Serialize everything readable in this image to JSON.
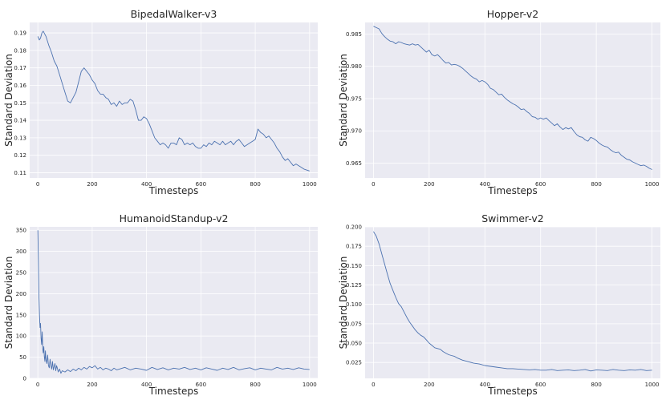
{
  "chart_data": [
    {
      "type": "line",
      "title": "BipedalWalker-v3",
      "xlabel": "Timesteps",
      "ylabel": "Standard Deviation",
      "xlim": [
        -30,
        1030
      ],
      "ylim": [
        0.107,
        0.196
      ],
      "xticks": [
        0,
        200,
        400,
        600,
        800,
        1000
      ],
      "yticks": [
        0.11,
        0.12,
        0.13,
        0.14,
        0.15,
        0.16,
        0.17,
        0.18,
        0.19
      ],
      "ytick_labels": [
        "0.11",
        "0.12",
        "0.13",
        "0.14",
        "0.15",
        "0.16",
        "0.17",
        "0.18",
        "0.19"
      ],
      "grid": true,
      "series": [
        {
          "x": [
            0,
            5,
            10,
            15,
            20,
            30,
            40,
            50,
            60,
            70,
            80,
            90,
            100,
            110,
            120,
            130,
            140,
            150,
            160,
            170,
            180,
            190,
            200,
            210,
            220,
            230,
            240,
            250,
            260,
            270,
            280,
            290,
            300,
            310,
            320,
            330,
            340,
            350,
            360,
            370,
            380,
            390,
            400,
            410,
            420,
            430,
            440,
            450,
            460,
            470,
            480,
            490,
            500,
            510,
            520,
            530,
            540,
            550,
            560,
            570,
            580,
            590,
            600,
            610,
            620,
            630,
            640,
            650,
            660,
            670,
            680,
            690,
            700,
            710,
            720,
            730,
            740,
            750,
            760,
            770,
            780,
            790,
            800,
            810,
            820,
            830,
            840,
            850,
            860,
            870,
            880,
            890,
            900,
            910,
            920,
            930,
            940,
            950,
            960,
            970,
            980,
            990,
            1000
          ],
          "y": [
            0.188,
            0.186,
            0.187,
            0.19,
            0.191,
            0.188,
            0.183,
            0.179,
            0.174,
            0.171,
            0.166,
            0.161,
            0.156,
            0.151,
            0.15,
            0.153,
            0.156,
            0.162,
            0.168,
            0.17,
            0.168,
            0.166,
            0.163,
            0.161,
            0.157,
            0.155,
            0.155,
            0.153,
            0.152,
            0.149,
            0.15,
            0.148,
            0.151,
            0.149,
            0.15,
            0.15,
            0.152,
            0.151,
            0.146,
            0.14,
            0.14,
            0.142,
            0.141,
            0.138,
            0.134,
            0.13,
            0.128,
            0.126,
            0.127,
            0.126,
            0.124,
            0.127,
            0.127,
            0.126,
            0.13,
            0.129,
            0.126,
            0.127,
            0.126,
            0.127,
            0.125,
            0.124,
            0.124,
            0.126,
            0.125,
            0.127,
            0.126,
            0.128,
            0.127,
            0.126,
            0.128,
            0.126,
            0.127,
            0.128,
            0.126,
            0.128,
            0.129,
            0.127,
            0.125,
            0.126,
            0.127,
            0.128,
            0.129,
            0.135,
            0.133,
            0.132,
            0.13,
            0.131,
            0.129,
            0.127,
            0.124,
            0.122,
            0.119,
            0.117,
            0.118,
            0.116,
            0.114,
            0.115,
            0.114,
            0.113,
            0.112,
            0.1115,
            0.111
          ]
        }
      ]
    },
    {
      "type": "line",
      "title": "Hopper-v2",
      "xlabel": "Timesteps",
      "ylabel": "Standard Deviation",
      "xlim": [
        -30,
        1030
      ],
      "ylim": [
        0.9627,
        0.9868
      ],
      "xticks": [
        0,
        200,
        400,
        600,
        800,
        1000
      ],
      "yticks": [
        0.965,
        0.97,
        0.975,
        0.98,
        0.985
      ],
      "ytick_labels": [
        "0.965",
        "0.970",
        "0.975",
        "0.980",
        "0.985"
      ],
      "grid": true,
      "series": [
        {
          "x": [
            0,
            10,
            20,
            30,
            40,
            50,
            60,
            70,
            80,
            90,
            100,
            110,
            120,
            130,
            140,
            150,
            160,
            170,
            180,
            190,
            200,
            210,
            220,
            230,
            240,
            250,
            260,
            270,
            280,
            290,
            300,
            310,
            320,
            330,
            340,
            350,
            360,
            370,
            380,
            390,
            400,
            410,
            420,
            430,
            440,
            450,
            460,
            470,
            480,
            490,
            500,
            510,
            520,
            530,
            540,
            550,
            560,
            570,
            580,
            590,
            600,
            610,
            620,
            630,
            640,
            650,
            660,
            670,
            680,
            690,
            700,
            710,
            720,
            730,
            740,
            750,
            760,
            770,
            780,
            790,
            800,
            810,
            820,
            830,
            840,
            850,
            860,
            870,
            880,
            890,
            900,
            910,
            920,
            930,
            940,
            950,
            960,
            970,
            980,
            990,
            1000
          ],
          "y": [
            0.9862,
            0.986,
            0.9858,
            0.9851,
            0.9846,
            0.9842,
            0.9839,
            0.9838,
            0.9835,
            0.9838,
            0.9837,
            0.9835,
            0.9834,
            0.9833,
            0.9835,
            0.9833,
            0.9834,
            0.983,
            0.9826,
            0.9822,
            0.9825,
            0.9818,
            0.9816,
            0.9818,
            0.9814,
            0.9809,
            0.9805,
            0.9806,
            0.9802,
            0.9803,
            0.9802,
            0.98,
            0.9797,
            0.9793,
            0.9789,
            0.9785,
            0.9782,
            0.978,
            0.9776,
            0.9778,
            0.9776,
            0.9772,
            0.9766,
            0.9764,
            0.976,
            0.9756,
            0.9757,
            0.9752,
            0.9748,
            0.9745,
            0.9742,
            0.974,
            0.9737,
            0.9733,
            0.9734,
            0.973,
            0.9727,
            0.9722,
            0.9721,
            0.9718,
            0.972,
            0.9718,
            0.972,
            0.9716,
            0.9712,
            0.9708,
            0.9711,
            0.9706,
            0.9702,
            0.9705,
            0.9703,
            0.9705,
            0.9699,
            0.9694,
            0.9691,
            0.969,
            0.9686,
            0.9684,
            0.969,
            0.9688,
            0.9685,
            0.9681,
            0.9678,
            0.9676,
            0.9675,
            0.9671,
            0.9668,
            0.9666,
            0.9667,
            0.9662,
            0.9659,
            0.9656,
            0.9655,
            0.9652,
            0.965,
            0.9648,
            0.9646,
            0.9647,
            0.9645,
            0.9642,
            0.964
          ]
        }
      ]
    },
    {
      "type": "line",
      "title": "HumanoidStandup-v2",
      "xlabel": "Timesteps",
      "ylabel": "Standard Deviation",
      "xlim": [
        -30,
        1030
      ],
      "ylim": [
        0,
        358
      ],
      "xticks": [
        0,
        200,
        400,
        600,
        800,
        1000
      ],
      "yticks": [
        0,
        50,
        100,
        150,
        200,
        250,
        300,
        350
      ],
      "ytick_labels": [
        "0",
        "50",
        "100",
        "150",
        "200",
        "250",
        "300",
        "350"
      ],
      "grid": true,
      "series": [
        {
          "x": [
            0,
            2,
            4,
            6,
            8,
            10,
            12,
            14,
            16,
            18,
            20,
            22,
            24,
            26,
            28,
            30,
            33,
            36,
            39,
            42,
            45,
            48,
            51,
            54,
            57,
            60,
            63,
            66,
            69,
            72,
            75,
            80,
            85,
            90,
            100,
            110,
            120,
            130,
            140,
            150,
            160,
            170,
            180,
            190,
            200,
            210,
            220,
            230,
            240,
            250,
            260,
            270,
            280,
            290,
            300,
            320,
            340,
            360,
            380,
            400,
            420,
            440,
            460,
            480,
            500,
            520,
            540,
            560,
            580,
            600,
            620,
            640,
            660,
            680,
            700,
            720,
            740,
            760,
            780,
            800,
            820,
            840,
            860,
            880,
            900,
            920,
            940,
            960,
            980,
            1000
          ],
          "y": [
            350,
            280,
            195,
            150,
            120,
            130,
            95,
            80,
            110,
            70,
            60,
            75,
            50,
            40,
            65,
            45,
            35,
            55,
            30,
            25,
            45,
            30,
            22,
            40,
            20,
            28,
            35,
            18,
            30,
            24,
            15,
            22,
            12,
            18,
            15,
            20,
            16,
            22,
            18,
            24,
            20,
            26,
            22,
            28,
            25,
            30,
            22,
            26,
            20,
            24,
            22,
            18,
            24,
            20,
            22,
            26,
            20,
            24,
            22,
            19,
            26,
            21,
            25,
            20,
            24,
            22,
            26,
            21,
            24,
            20,
            25,
            22,
            19,
            24,
            21,
            26,
            20,
            23,
            25,
            20,
            24,
            22,
            20,
            26,
            22,
            24,
            21,
            25,
            22,
            21
          ]
        }
      ]
    },
    {
      "type": "line",
      "title": "Swimmer-v2",
      "xlabel": "Timesteps",
      "ylabel": "Standard Deviation",
      "xlim": [
        -30,
        1030
      ],
      "ylim": [
        0.0045,
        0.2
      ],
      "xticks": [
        0,
        200,
        400,
        600,
        800,
        1000
      ],
      "yticks": [
        0.025,
        0.05,
        0.075,
        0.1,
        0.125,
        0.15,
        0.175,
        0.2
      ],
      "ytick_labels": [
        "0.025",
        "0.050",
        "0.075",
        "0.100",
        "0.125",
        "0.150",
        "0.175",
        "0.200"
      ],
      "grid": true,
      "series": [
        {
          "x": [
            0,
            10,
            20,
            30,
            40,
            50,
            60,
            70,
            80,
            90,
            100,
            110,
            120,
            130,
            140,
            150,
            160,
            170,
            180,
            190,
            200,
            210,
            220,
            230,
            240,
            250,
            260,
            270,
            280,
            290,
            300,
            320,
            340,
            360,
            380,
            400,
            420,
            440,
            460,
            480,
            500,
            520,
            540,
            560,
            580,
            600,
            620,
            640,
            660,
            680,
            700,
            720,
            740,
            760,
            780,
            800,
            820,
            840,
            860,
            880,
            900,
            920,
            940,
            960,
            980,
            1000
          ],
          "y": [
            0.194,
            0.188,
            0.178,
            0.165,
            0.152,
            0.139,
            0.127,
            0.118,
            0.109,
            0.101,
            0.097,
            0.09,
            0.083,
            0.077,
            0.072,
            0.067,
            0.063,
            0.06,
            0.058,
            0.054,
            0.05,
            0.047,
            0.044,
            0.043,
            0.042,
            0.039,
            0.037,
            0.035,
            0.034,
            0.033,
            0.031,
            0.028,
            0.026,
            0.024,
            0.023,
            0.021,
            0.02,
            0.019,
            0.018,
            0.017,
            0.017,
            0.0165,
            0.016,
            0.0155,
            0.016,
            0.015,
            0.015,
            0.016,
            0.0145,
            0.015,
            0.0155,
            0.0145,
            0.015,
            0.016,
            0.014,
            0.0155,
            0.015,
            0.0145,
            0.016,
            0.015,
            0.0145,
            0.0155,
            0.015,
            0.016,
            0.0145,
            0.015
          ]
        }
      ]
    }
  ]
}
